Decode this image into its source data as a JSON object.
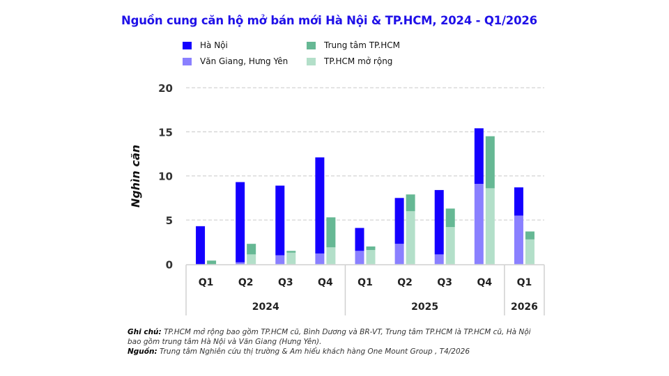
{
  "chart_data": {
    "type": "stacked-bar",
    "title": "Nguồn cung căn hộ mở bán mới Hà Nội & TP.HCM, 2024 - Q1/2026",
    "ylabel": "Nghìn căn",
    "ylim": [
      0,
      20
    ],
    "yticks": [
      0,
      5,
      10,
      15,
      20
    ],
    "grid": true,
    "legend_position": "top",
    "categories": [
      "Q1",
      "Q2",
      "Q3",
      "Q4",
      "Q1",
      "Q2",
      "Q3",
      "Q4",
      "Q1"
    ],
    "year_groups": [
      {
        "label": "2024",
        "count": 4
      },
      {
        "label": "2025",
        "count": 4
      },
      {
        "label": "2026",
        "count": 1
      }
    ],
    "stacks": [
      {
        "series": [
          {
            "name": "Văn Giang, Hưng Yên",
            "color": "#8a80ff",
            "values": [
              0,
              0.2,
              1.0,
              1.2,
              1.5,
              2.3,
              1.1,
              9.1,
              5.5
            ]
          },
          {
            "name": "Hà Nội",
            "color": "#1400ff",
            "values": [
              4.3,
              9.1,
              7.9,
              10.9,
              2.6,
              5.2,
              7.3,
              6.3,
              3.2
            ]
          }
        ]
      },
      {
        "series": [
          {
            "name": "TP.HCM mở rộng",
            "color": "#b3dfc9",
            "values": [
              0,
              1.1,
              1.3,
              1.9,
              1.6,
              6.0,
              4.2,
              8.6,
              2.8
            ]
          },
          {
            "name": "Trung tâm TP.HCM",
            "color": "#66b894",
            "values": [
              0.4,
              1.2,
              0.2,
              3.4,
              0.4,
              1.9,
              2.1,
              5.9,
              0.9
            ]
          }
        ]
      }
    ]
  },
  "legend": [
    {
      "label": "Hà Nội",
      "color": "#1400ff"
    },
    {
      "label": "Trung tâm TP.HCM",
      "color": "#66b894"
    },
    {
      "label": "Văn Giang, Hưng Yên",
      "color": "#8a80ff"
    },
    {
      "label": "TP.HCM mở rộng",
      "color": "#b3dfc9"
    }
  ],
  "notes": {
    "note_label": "Ghi chú:",
    "note_text": " TP.HCM mở rộng bao gồm TP.HCM cũ, Bình Dương và BR-VT, Trung tâm TP.HCM là TP.HCM cũ, Hà Nội bao gồm trung tâm Hà Nội và Văn Giang (Hưng Yên).",
    "source_label": "Nguồn:",
    "source_text": " Trung tâm Nghiên cứu thị trường & Am hiểu khách hàng One Mount Group , T4/2026"
  }
}
